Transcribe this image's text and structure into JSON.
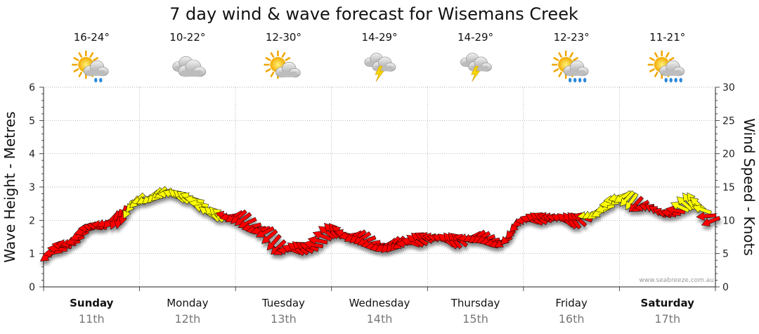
{
  "chart_data": {
    "type": "line",
    "title": "7 day wind & wave forecast for Wisemans Creek",
    "ylabel_left": "Wave Height - Metres",
    "ylabel_right": "Wind Speed - Knots",
    "ylim_left": [
      0,
      6
    ],
    "ylim_right": [
      0,
      30
    ],
    "yticks_left": [
      "0",
      "1",
      "2",
      "3",
      "4",
      "5",
      "6"
    ],
    "yticks_right": [
      "0",
      "5",
      "10",
      "15",
      "20",
      "25",
      "30"
    ],
    "grid": true,
    "days": [
      {
        "name": "Sunday",
        "date": "11th",
        "bold": true,
        "temp": "16-24°",
        "icon": "sun-cloud-rain-icon"
      },
      {
        "name": "Monday",
        "date": "12th",
        "bold": false,
        "temp": "10-22°",
        "icon": "cloud-icon"
      },
      {
        "name": "Tuesday",
        "date": "13th",
        "bold": false,
        "temp": "12-30°",
        "icon": "sun-cloud-icon"
      },
      {
        "name": "Wednesday",
        "date": "14th",
        "bold": false,
        "temp": "14-29°",
        "icon": "storm-icon"
      },
      {
        "name": "Thursday",
        "date": "15th",
        "bold": false,
        "temp": "14-29°",
        "icon": "storm-icon"
      },
      {
        "name": "Friday",
        "date": "16th",
        "bold": false,
        "temp": "12-23°",
        "icon": "sun-cloud-heavy-rain-icon"
      },
      {
        "name": "Saturday",
        "date": "17th",
        "bold": true,
        "temp": "11-21°",
        "icon": "sun-cloud-heavy-rain-icon"
      }
    ],
    "series": [
      {
        "axis": "right",
        "x_unit": "day",
        "x": [
          0,
          0.25,
          0.5,
          0.75,
          1,
          1.25,
          1.5,
          1.75,
          2,
          2.25,
          2.5,
          2.75,
          3,
          3.25,
          3.5,
          3.75,
          4,
          4.25,
          4.5,
          4.75,
          5,
          5.25,
          5.5,
          5.75,
          6,
          6.25,
          6.5,
          6.75,
          7
        ],
        "values": [
          4.5,
          6.5,
          9.0,
          10.0,
          13.0,
          14.0,
          13.5,
          11.0,
          10.5,
          8.5,
          5.5,
          6.0,
          8.5,
          7.5,
          6.0,
          6.5,
          7.5,
          7.0,
          7.5,
          6.5,
          10.0,
          10.5,
          10.0,
          11.0,
          13.5,
          12.0,
          11.0,
          13.0,
          9.5
        ],
        "colors": [
          "red",
          "red",
          "red",
          "red",
          "yellow",
          "yellow",
          "yellow",
          "yellow",
          "red",
          "red",
          "red",
          "red",
          "red",
          "red",
          "red",
          "red",
          "red",
          "red",
          "red",
          "red",
          "red",
          "red",
          "red",
          "yellow",
          "yellow",
          "red",
          "red",
          "yellow",
          "red"
        ]
      }
    ]
  },
  "colors": {
    "red": "#ff0000",
    "yellow": "#ffff00",
    "grid": "#999999"
  },
  "credit": "www.seabreeze.com.au"
}
